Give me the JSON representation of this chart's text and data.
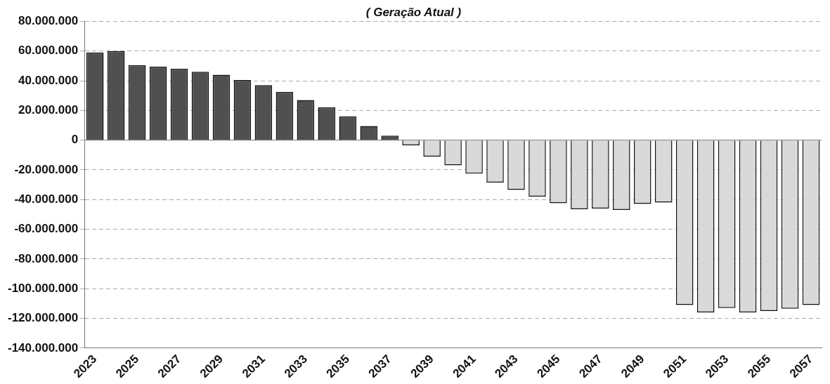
{
  "chart_data": {
    "type": "bar",
    "title": "( Geração Atual )",
    "categories": [
      "2023",
      null,
      "2025",
      null,
      "2027",
      null,
      "2029",
      null,
      "2031",
      null,
      "2033",
      null,
      "2035",
      null,
      "2037",
      null,
      "2039",
      null,
      "2041",
      null,
      "2043",
      null,
      "2045",
      null,
      "2047",
      null,
      "2049",
      null,
      "2051",
      null,
      "2053",
      null,
      "2055",
      null,
      "2057"
    ],
    "values": [
      59000000,
      60000000,
      50500000,
      49500000,
      48000000,
      46000000,
      44000000,
      40500000,
      37000000,
      32500000,
      27000000,
      22000000,
      16000000,
      9500000,
      3000000,
      -3500000,
      -11000000,
      -17000000,
      -22500000,
      -28500000,
      -33500000,
      -38000000,
      -42500000,
      -46500000,
      -46000000,
      -47000000,
      -43000000,
      -42000000,
      -111000000,
      -116000000,
      -113000000,
      -116000000,
      -115000000,
      -113500000,
      -111000000
    ],
    "colors": [
      "#505050",
      "#505050",
      "#505050",
      "#505050",
      "#505050",
      "#505050",
      "#505050",
      "#505050",
      "#505050",
      "#505050",
      "#505050",
      "#505050",
      "#505050",
      "#505050",
      "#505050",
      "#d9d9d9",
      "#d9d9d9",
      "#d9d9d9",
      "#d9d9d9",
      "#d9d9d9",
      "#d9d9d9",
      "#d9d9d9",
      "#d9d9d9",
      "#d9d9d9",
      "#d9d9d9",
      "#d9d9d9",
      "#d9d9d9",
      "#d9d9d9",
      "#d9d9d9",
      "#d9d9d9",
      "#d9d9d9",
      "#d9d9d9",
      "#d9d9d9",
      "#d9d9d9",
      "#d9d9d9"
    ],
    "ylim": [
      -140000000,
      80000000
    ],
    "yticks": [
      {
        "value": -140000000,
        "label": "-140.000.000"
      },
      {
        "value": -120000000,
        "label": "-120.000.000"
      },
      {
        "value": -100000000,
        "label": "-100.000.000"
      },
      {
        "value": -80000000,
        "label": "-80.000.000"
      },
      {
        "value": -60000000,
        "label": "-60.000.000"
      },
      {
        "value": -40000000,
        "label": "-40.000.000"
      },
      {
        "value": -20000000,
        "label": "-20.000.000"
      },
      {
        "value": 0,
        "label": "0"
      },
      {
        "value": 20000000,
        "label": "20.000.000"
      },
      {
        "value": 40000000,
        "label": "40.000.000"
      },
      {
        "value": 60000000,
        "label": "60.000.000"
      },
      {
        "value": 80000000,
        "label": "80.000.000"
      }
    ],
    "grid": "y",
    "legend": false
  }
}
